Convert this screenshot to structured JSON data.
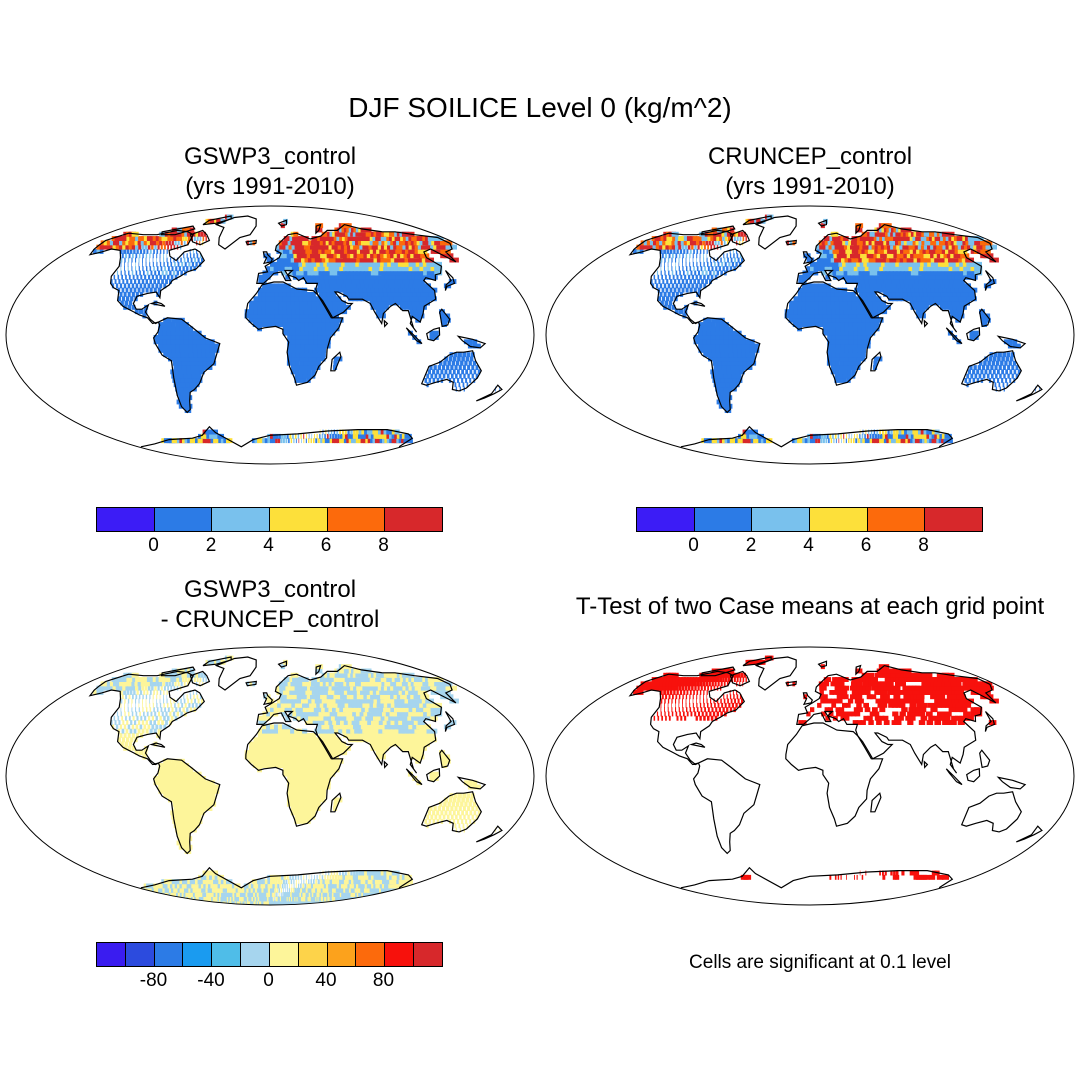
{
  "title": "DJF SOILICE Level 0 (kg/m^2)",
  "panels": [
    {
      "id": "gswp3",
      "title_line1": "GSWP3_control",
      "title_line2": "(yrs 1991-2010)",
      "style": "ice"
    },
    {
      "id": "cruncep",
      "title_line1": "CRUNCEP_control",
      "title_line2": "(yrs 1991-2010)",
      "style": "ice2"
    },
    {
      "id": "diff",
      "title_line1": "GSWP3_control",
      "title_line2": "- CRUNCEP_control",
      "style": "diff"
    },
    {
      "id": "ttest",
      "title_line1": "T-Test of two Case means at each grid point",
      "title_line2": "",
      "style": "ttest"
    }
  ],
  "colorbar_top": {
    "colors": [
      "#3c1cf6",
      "#2c7be6",
      "#79c1ed",
      "#fde03a",
      "#fc6a0c",
      "#d7282b"
    ],
    "labels": [
      "0",
      "2",
      "4",
      "6",
      "8"
    ]
  },
  "colorbar_diff": {
    "colors": [
      "#3a1cf0",
      "#2c4bde",
      "#2c7be6",
      "#1a9bf0",
      "#4fbde8",
      "#a6d5ee",
      "#fdf59a",
      "#fdd34a",
      "#fca21c",
      "#fc6a0c",
      "#f7110c",
      "#d7282b"
    ],
    "labels": [
      "-80",
      "-40",
      "0",
      "40",
      "80"
    ]
  },
  "note": "Cells are significant at 0.1 level"
}
